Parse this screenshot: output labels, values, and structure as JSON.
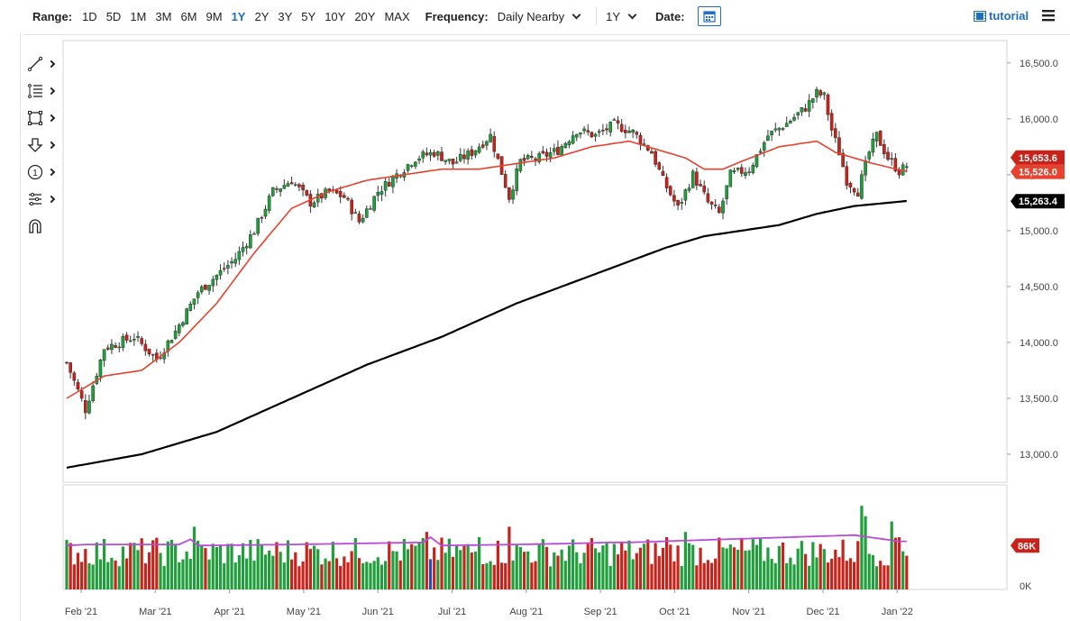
{
  "toolbar": {
    "range_label": "Range:",
    "ranges": [
      "1D",
      "5D",
      "1M",
      "3M",
      "6M",
      "9M",
      "1Y",
      "2Y",
      "3Y",
      "5Y",
      "10Y",
      "20Y",
      "MAX"
    ],
    "active_range": "1Y",
    "frequency_label": "Frequency:",
    "frequency_value": "Daily Nearby",
    "period_value": "1Y",
    "date_label": "Date:",
    "tutorial_label": "tutorial"
  },
  "tools": [
    "line-tool-icon",
    "fib-tool-icon",
    "rectangle-tool-icon",
    "arrow-tool-icon",
    "marker-tool-icon",
    "pattern-tool-icon",
    "magnet-icon"
  ],
  "colors": {
    "up": "#1f9e3b",
    "down": "#c9221a",
    "ma50": "#e8412e",
    "ma200": "#000000",
    "vol_avg": "#b84bd6",
    "accent": "#1e6fc2",
    "active_vol": "#1e4fc2"
  },
  "chart_data": {
    "type": "candlestick",
    "x_ticks": [
      "Feb '21",
      "Mar '21",
      "Apr '21",
      "May '21",
      "Jun '21",
      "Jul '21",
      "Aug '21",
      "Sep '21",
      "Oct '21",
      "Nov '21",
      "Dec '21",
      "Jan '22"
    ],
    "y_ticks": [
      "16,500.0",
      "16,000.0",
      "15,500.0",
      "15,000.0",
      "14,500.0",
      "14,000.0",
      "13,500.0",
      "13,000.0"
    ],
    "ylim": [
      12750,
      16700
    ],
    "price_labels": {
      "last": "15,653.6",
      "ma50": "15,526.0",
      "ma200": "15,263.4"
    },
    "volume_label": "86K",
    "volume_zero": "0K",
    "price_anchors": [
      [
        0,
        13820
      ],
      [
        5,
        13400
      ],
      [
        10,
        13950
      ],
      [
        18,
        14050
      ],
      [
        24,
        13850
      ],
      [
        29,
        14100
      ],
      [
        35,
        14450
      ],
      [
        40,
        14600
      ],
      [
        45,
        14750
      ],
      [
        50,
        15000
      ],
      [
        55,
        15350
      ],
      [
        60,
        15450
      ],
      [
        65,
        15250
      ],
      [
        70,
        15350
      ],
      [
        74,
        15300
      ],
      [
        78,
        15080
      ],
      [
        83,
        15350
      ],
      [
        88,
        15500
      ],
      [
        93,
        15650
      ],
      [
        98,
        15700
      ],
      [
        103,
        15600
      ],
      [
        108,
        15700
      ],
      [
        113,
        15850
      ],
      [
        118,
        15300
      ],
      [
        121,
        15620
      ],
      [
        126,
        15650
      ],
      [
        131,
        15720
      ],
      [
        136,
        15900
      ],
      [
        141,
        15850
      ],
      [
        146,
        15950
      ],
      [
        151,
        15880
      ],
      [
        156,
        15700
      ],
      [
        159,
        15450
      ],
      [
        163,
        15200
      ],
      [
        167,
        15500
      ],
      [
        171,
        15250
      ],
      [
        174,
        15150
      ],
      [
        177,
        15500
      ],
      [
        182,
        15550
      ],
      [
        187,
        15850
      ],
      [
        192,
        15960
      ],
      [
        197,
        16100
      ],
      [
        200,
        16230
      ],
      [
        202,
        16200
      ],
      [
        204,
        15900
      ],
      [
        206,
        15700
      ],
      [
        208,
        15450
      ],
      [
        211,
        15350
      ],
      [
        214,
        15700
      ],
      [
        216,
        15850
      ],
      [
        219,
        15650
      ],
      [
        222,
        15530
      ],
      [
        224,
        15580
      ]
    ],
    "ma50_anchors": [
      [
        0,
        13500
      ],
      [
        10,
        13700
      ],
      [
        20,
        13750
      ],
      [
        30,
        14000
      ],
      [
        40,
        14350
      ],
      [
        50,
        14800
      ],
      [
        60,
        15200
      ],
      [
        70,
        15350
      ],
      [
        80,
        15450
      ],
      [
        90,
        15500
      ],
      [
        100,
        15550
      ],
      [
        110,
        15550
      ],
      [
        120,
        15600
      ],
      [
        130,
        15650
      ],
      [
        140,
        15750
      ],
      [
        150,
        15800
      ],
      [
        155,
        15750
      ],
      [
        160,
        15700
      ],
      [
        165,
        15650
      ],
      [
        170,
        15550
      ],
      [
        175,
        15550
      ],
      [
        180,
        15620
      ],
      [
        190,
        15750
      ],
      [
        200,
        15800
      ],
      [
        205,
        15700
      ],
      [
        210,
        15650
      ],
      [
        215,
        15600
      ],
      [
        220,
        15560
      ],
      [
        224,
        15530
      ]
    ],
    "ma200_anchors": [
      [
        0,
        12880
      ],
      [
        20,
        13000
      ],
      [
        40,
        13200
      ],
      [
        60,
        13500
      ],
      [
        80,
        13800
      ],
      [
        100,
        14050
      ],
      [
        110,
        14200
      ],
      [
        120,
        14350
      ],
      [
        140,
        14600
      ],
      [
        160,
        14850
      ],
      [
        170,
        14950
      ],
      [
        180,
        15000
      ],
      [
        190,
        15050
      ],
      [
        200,
        15150
      ],
      [
        210,
        15220
      ],
      [
        224,
        15265
      ]
    ],
    "volume_avg_anchors": [
      [
        0,
        0.42
      ],
      [
        5,
        0.43
      ],
      [
        30,
        0.43
      ],
      [
        33,
        0.48
      ],
      [
        35,
        0.42
      ],
      [
        60,
        0.43
      ],
      [
        95,
        0.45
      ],
      [
        97,
        0.5
      ],
      [
        100,
        0.42
      ],
      [
        120,
        0.43
      ],
      [
        135,
        0.44
      ],
      [
        145,
        0.45
      ],
      [
        150,
        0.45
      ],
      [
        210,
        0.52
      ],
      [
        222,
        0.46
      ]
    ],
    "volume_spikes": [
      [
        34,
        0.6
      ],
      [
        96,
        0.55
      ],
      [
        110,
        0.5
      ],
      [
        118,
        0.6
      ],
      [
        160,
        0.5
      ],
      [
        165,
        0.55
      ],
      [
        212,
        0.8
      ],
      [
        213,
        0.7
      ],
      [
        220,
        0.65
      ],
      [
        222,
        0.5
      ]
    ]
  }
}
